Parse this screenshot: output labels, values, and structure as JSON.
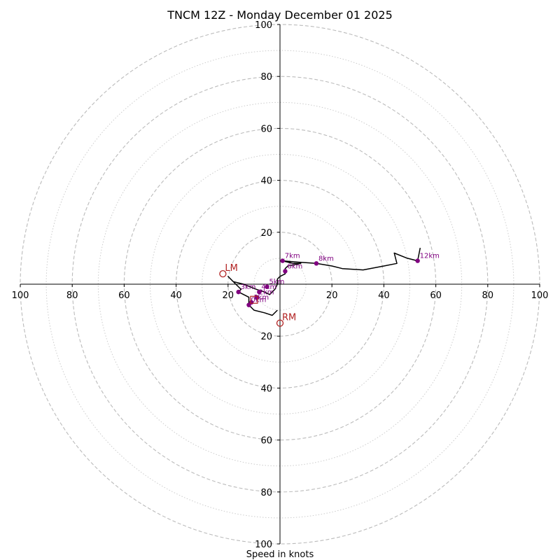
{
  "chart_data": {
    "type": "hodograph",
    "title": "TNCM 12Z - Monday December 01 2025",
    "xlabel": "Speed in knots",
    "range": [
      0,
      100
    ],
    "major_rings": [
      20,
      40,
      60,
      80,
      100
    ],
    "minor_rings": [
      10,
      30,
      50,
      70,
      90
    ],
    "tick_values": [
      20,
      40,
      60,
      80,
      100
    ],
    "colors": {
      "trace": "#000000",
      "height_markers": "#800080",
      "storm_motion": "#b22222",
      "major_grid": "#bbbbbb",
      "minor_grid": "#cccccc"
    },
    "trace": [
      [
        -1,
        -10
      ],
      [
        -3,
        -12
      ],
      [
        -6,
        -11
      ],
      [
        -10,
        -10
      ],
      [
        -12,
        -8
      ],
      [
        -12,
        -5
      ],
      [
        -14,
        -4
      ],
      [
        -16,
        -3
      ],
      [
        -15,
        -2
      ],
      [
        -17,
        0
      ],
      [
        -19,
        2
      ],
      [
        -20,
        3
      ],
      [
        -18,
        1
      ],
      [
        -14,
        0
      ],
      [
        -9,
        -2
      ],
      [
        -6,
        -3
      ],
      [
        -4,
        -4
      ],
      [
        -3,
        -3
      ],
      [
        -2,
        -2
      ],
      [
        -1,
        0
      ],
      [
        -1,
        2
      ],
      [
        0,
        3
      ],
      [
        2,
        4
      ],
      [
        2,
        6
      ],
      [
        3,
        7
      ],
      [
        8,
        8
      ],
      [
        5,
        8
      ],
      [
        3,
        8.5
      ],
      [
        1,
        9
      ],
      [
        7,
        8.5
      ],
      [
        14,
        8
      ],
      [
        20,
        7
      ],
      [
        24,
        6
      ],
      [
        32,
        5.5
      ],
      [
        40,
        7
      ],
      [
        45,
        8
      ],
      [
        44,
        12
      ],
      [
        49,
        10
      ],
      [
        53,
        9
      ],
      [
        54,
        14
      ]
    ],
    "height_markers": [
      {
        "label": "0km",
        "u": -12,
        "v": -8
      },
      {
        "label": "1km",
        "u": -11,
        "v": -7
      },
      {
        "label": "2km",
        "u": -9,
        "v": -5
      },
      {
        "label": "3km",
        "u": -16,
        "v": -3
      },
      {
        "label": "4km",
        "u": -8,
        "v": -3
      },
      {
        "label": "5km",
        "u": -5,
        "v": -1
      },
      {
        "label": "6km",
        "u": 2,
        "v": 5
      },
      {
        "label": "7km",
        "u": 1,
        "v": 9
      },
      {
        "label": "8km",
        "u": 14,
        "v": 8
      },
      {
        "label": "12km",
        "u": 53,
        "v": 9
      }
    ],
    "storm_motion": [
      {
        "label": "LM",
        "u": -22,
        "v": 4
      },
      {
        "label": "RM",
        "u": 0,
        "v": -15
      }
    ],
    "mean_wind_marker": {
      "u": -10,
      "v": -6
    }
  }
}
